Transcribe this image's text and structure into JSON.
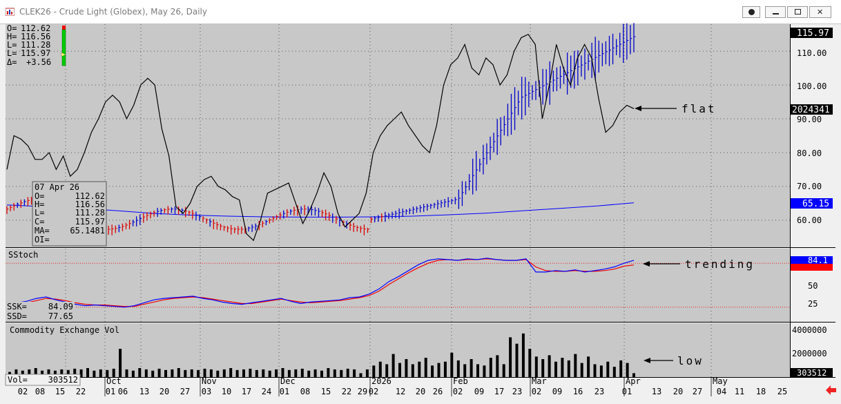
{
  "window": {
    "title": "CLEK26 - Crude Light (Globex), May 26, Daily",
    "buttons": [
      "circle-button",
      "minimize-button",
      "restore-button",
      "close-button"
    ]
  },
  "colors": {
    "panel_bg": "#c8c8c8",
    "price_line": "#000000",
    "up_bar": "#0000cc",
    "down_bar": "#dd0000",
    "ma_line": "#0000ff",
    "ssk_line": "#0000ff",
    "ssd_line": "#ee0000",
    "volume_bar": "#000000",
    "last_price_tag": "#0000ff"
  },
  "top_ohlc": {
    "labels": [
      "O=",
      "H=",
      "L=",
      "L=",
      "Δ="
    ],
    "values": [
      "112.62",
      "116.56",
      "111.28",
      "115.97",
      "+3.56"
    ]
  },
  "data_box": {
    "date": "07 Apr 26",
    "rows": [
      {
        "label": "O=",
        "value": "112.62"
      },
      {
        "label": "H=",
        "value": "116.56"
      },
      {
        "label": "L=",
        "value": "111.28"
      },
      {
        "label": "C=",
        "value": "115.97"
      },
      {
        "label": "MA=",
        "value": "65.1481"
      },
      {
        "label": "OI=",
        "value": ""
      }
    ]
  },
  "price_axis": {
    "ticks": [
      "110.00",
      "100.00",
      "90.00",
      "80.00",
      "70.00",
      "60.00"
    ],
    "last_price": "115.97",
    "oi_value": "2024341",
    "ma_value": "65.15"
  },
  "stoch": {
    "title": "SStoch",
    "ticks": [
      "50",
      "25"
    ],
    "last_value": "84.1",
    "ssk_label": "SSK=",
    "ssk_value": "84.09",
    "ssd_label": "SSD=",
    "ssd_value": "77.65"
  },
  "volume": {
    "title": "Commodity Exchange Vol",
    "ticks": [
      "4000000",
      "2000000"
    ],
    "last_value": "303512",
    "vol_label": "Vol=",
    "vol_value": "303512"
  },
  "annotations": [
    "flat",
    "trending",
    "low"
  ],
  "date_axis": {
    "months": [
      "Oct",
      "Nov",
      "Dec",
      "2026",
      "Feb",
      "Mar",
      "Apr",
      "May"
    ],
    "days": [
      "02",
      "08",
      "15",
      "22",
      "01",
      "06",
      "13",
      "20",
      "27",
      "03",
      "10",
      "17",
      "24",
      "01",
      "08",
      "15",
      "22",
      "29",
      "02",
      "12",
      "20",
      "26",
      "02",
      "09",
      "17",
      "23",
      "02",
      "09",
      "16",
      "23",
      "01",
      "13",
      "20",
      "27",
      "04",
      "11",
      "18",
      "25"
    ]
  },
  "chart_data": {
    "type": "line",
    "price_ylim": [
      52,
      118
    ],
    "oi_line": [
      75,
      85,
      84,
      82,
      78,
      78,
      80,
      75,
      79,
      73,
      75,
      80,
      86,
      90,
      95,
      97,
      95,
      90,
      94,
      100,
      102,
      100,
      87,
      79,
      64,
      62,
      65,
      70,
      72,
      73,
      70,
      69,
      67,
      66,
      56,
      54,
      60,
      68,
      69,
      70,
      71,
      65,
      59,
      63,
      68,
      74,
      70,
      62,
      58,
      60,
      62,
      68,
      80,
      85,
      88,
      90,
      92,
      88,
      85,
      82,
      80,
      88,
      100,
      106,
      108,
      112,
      105,
      103,
      108,
      106,
      100,
      103,
      110,
      114,
      115,
      112,
      90,
      100,
      112,
      105,
      100,
      108,
      112,
      108,
      96,
      86,
      88,
      92,
      94,
      93
    ],
    "ma_line": [
      64.5,
      64.0,
      63.5,
      62.8,
      62.0,
      61.5,
      61.2,
      61.0,
      60.9,
      60.9,
      61.0,
      61.2,
      61.6,
      62.1,
      62.8,
      63.5,
      64.2,
      65.15
    ],
    "price_bars_start": {
      "x_index": 1,
      "base": 62.0
    },
    "price_bars_rise": {
      "start": 100.0,
      "end": 115.97
    },
    "stoch_ylim": [
      0,
      100
    ],
    "stoch_levels": [
      80,
      20
    ],
    "ssk": [
      25,
      26,
      28,
      32,
      34,
      30,
      27,
      24,
      22,
      23,
      22,
      21,
      20,
      22,
      26,
      30,
      32,
      33,
      34,
      35,
      32,
      30,
      27,
      25,
      24,
      26,
      28,
      30,
      32,
      28,
      25,
      27,
      28,
      29,
      30,
      33,
      34,
      38,
      45,
      55,
      62,
      70,
      78,
      84,
      86,
      85,
      84,
      86,
      85,
      87,
      85,
      84,
      84,
      86,
      68,
      68,
      70,
      69,
      71,
      68,
      70,
      72,
      75,
      80,
      84.09
    ],
    "ssd": [
      24,
      25,
      26,
      29,
      32,
      31,
      29,
      26,
      24,
      23,
      23,
      22,
      21,
      21,
      24,
      27,
      30,
      32,
      33,
      34,
      33,
      31,
      29,
      27,
      25,
      25,
      27,
      29,
      31,
      29,
      27,
      26,
      27,
      28,
      29,
      31,
      33,
      36,
      42,
      51,
      59,
      67,
      74,
      80,
      84,
      85,
      84,
      85,
      85,
      86,
      85,
      84,
      84,
      85,
      75,
      70,
      69,
      69,
      70,
      69,
      69,
      70,
      72,
      76,
      77.65
    ],
    "volume_ylim": [
      0,
      4200000
    ],
    "volume": [
      400000,
      600000,
      500000,
      600000,
      700000,
      500000,
      600000,
      500000,
      600000,
      550000,
      650000,
      600000,
      700000,
      500000,
      600000,
      550000,
      650000,
      2200000,
      600000,
      500000,
      700000,
      600000,
      500000,
      650000,
      550000,
      600000,
      700000,
      550000,
      600000,
      550000,
      650000,
      600000,
      500000,
      600000,
      700000,
      550000,
      600000,
      650000,
      550000,
      600000,
      500000,
      600000,
      700000,
      550000,
      600000,
      650000,
      500000,
      600000,
      500000,
      700000,
      600000,
      550000,
      650000,
      600000,
      300000,
      600000,
      900000,
      1200000,
      1000000,
      1800000,
      1100000,
      1400000,
      1000000,
      1200000,
      1500000,
      900000,
      1100000,
      1200000,
      1900000,
      1300000,
      1000000,
      1400000,
      1000000,
      900000,
      1500000,
      1700000,
      1000000,
      3100000,
      2600000,
      3400000,
      2200000,
      1600000,
      1400000,
      1700000,
      1200000,
      1500000,
      1300000,
      1800000,
      1100000,
      1600000,
      1000000,
      900000,
      1200000,
      800000,
      1300000,
      1100000,
      303512
    ]
  }
}
